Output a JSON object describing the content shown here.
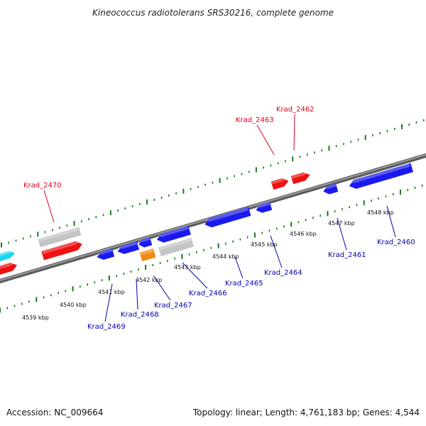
{
  "title": "Kineococcus radiotolerans SRS30216, complete genome",
  "footer": {
    "accession": "Accession: NC_009664",
    "summary": "Topology: linear; Length: 4,761,183 bp; Genes: 4,544"
  },
  "colors": {
    "backbone": "#808080",
    "ruler": "#1a7a1a",
    "forward_label": "#e0001a",
    "reverse_label": "#0000b0",
    "forward_gene": "#ee1111",
    "reverse_gene": "#1a1aee",
    "rna_gene": "#f08a10",
    "pseudo_gene": "#c4c4c4",
    "cyan_gene": "#18d8ee"
  },
  "ruler_labels": [
    {
      "text": "4539 kbp",
      "kbp": 4539
    },
    {
      "text": "4540 kbp",
      "kbp": 4540
    },
    {
      "text": "4541 kbp",
      "kbp": 4541
    },
    {
      "text": "4542 kbp",
      "kbp": 4542
    },
    {
      "text": "4543 kbp",
      "kbp": 4543
    },
    {
      "text": "4544 kbp",
      "kbp": 4544
    },
    {
      "text": "4545 kbp",
      "kbp": 4545
    },
    {
      "text": "4546 kbp",
      "kbp": 4546
    },
    {
      "text": "4547 kbp",
      "kbp": 4547
    },
    {
      "text": "4548 kbp",
      "kbp": 4548
    }
  ],
  "forward_labels": [
    {
      "name": "Krad_2470",
      "text": "Krad_2470"
    },
    {
      "name": "Krad_2463",
      "text": "Krad_2463"
    },
    {
      "name": "Krad_2462",
      "text": "Krad_2462"
    }
  ],
  "reverse_labels": [
    {
      "name": "Krad_2469",
      "text": "Krad_2469"
    },
    {
      "name": "Krad_2468",
      "text": "Krad_2468"
    },
    {
      "name": "Krad_2467",
      "text": "Krad_2467"
    },
    {
      "name": "Krad_2466",
      "text": "Krad_2466"
    },
    {
      "name": "Krad_2465",
      "text": "Krad_2465"
    },
    {
      "name": "Krad_2464",
      "text": "Krad_2464"
    },
    {
      "name": "Krad_2461",
      "text": "Krad_2461"
    },
    {
      "name": "Krad_2460",
      "text": "Krad_2460"
    }
  ]
}
